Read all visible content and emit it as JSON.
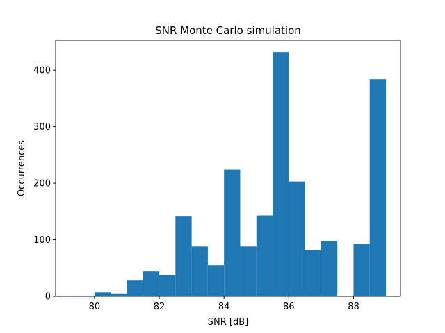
{
  "chart_data": {
    "type": "bar",
    "title": "SNR Monte Carlo simulation",
    "xlabel": "SNR [dB]",
    "ylabel": "Occurrences",
    "xlim": [
      78.8,
      89.45
    ],
    "ylim": [
      0,
      453
    ],
    "xticks": [
      80,
      82,
      84,
      86,
      88
    ],
    "yticks": [
      0,
      100,
      200,
      300,
      400
    ],
    "grid": false,
    "legend": "none",
    "bar_color": "#1f77b4",
    "bin_edges": [
      79.0,
      79.5,
      80.0,
      80.5,
      81.0,
      81.5,
      82.0,
      82.5,
      83.0,
      83.5,
      84.0,
      84.5,
      85.0,
      85.5,
      86.0,
      86.5,
      87.0,
      87.5,
      88.0,
      88.5,
      89.0
    ],
    "values": [
      1,
      1,
      7,
      4,
      28,
      44,
      38,
      141,
      88,
      55,
      224,
      88,
      143,
      432,
      203,
      82,
      97,
      0,
      93,
      384
    ]
  }
}
